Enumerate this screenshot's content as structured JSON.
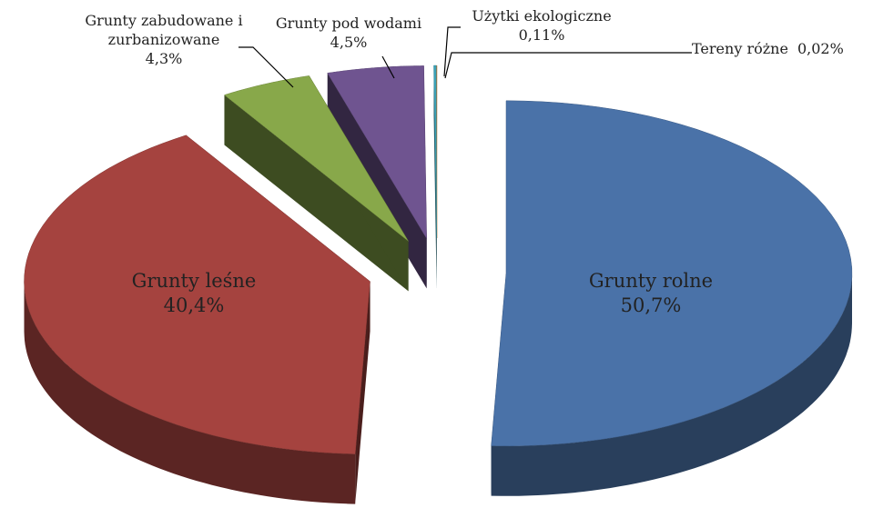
{
  "chart_data": {
    "type": "pie",
    "categories": [
      "Grunty rolne",
      "Grunty leśne",
      "Grunty zabudowane i zurbanizowane",
      "Grunty pod wodami",
      "Użytki ekologiczne",
      "Tereny różne"
    ],
    "values": [
      50.7,
      40.4,
      4.3,
      4.5,
      0.11,
      0.02
    ],
    "value_labels": [
      "50,7%",
      "40,4%",
      "4,3%",
      "4,5%",
      "0,11%",
      "0,02%"
    ],
    "colors": [
      "#4a72a8",
      "#a5433f",
      "#88a84a",
      "#6f5490",
      "#3aa2b8",
      "#e38a2f"
    ]
  }
}
